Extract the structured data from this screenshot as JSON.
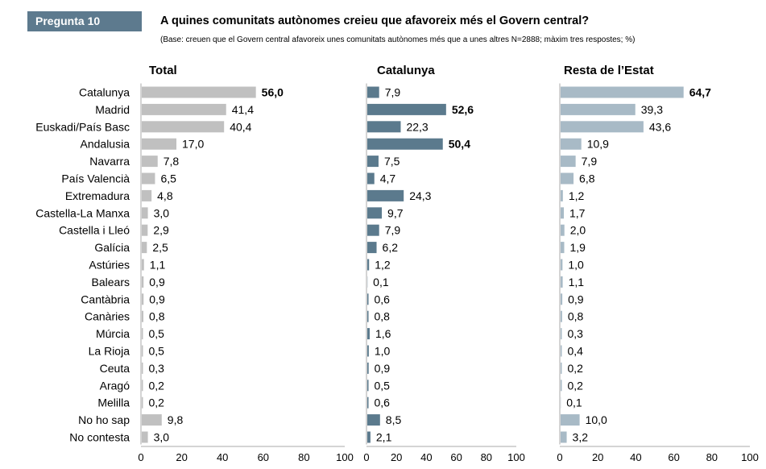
{
  "header": {
    "badge": "Pregunta 10",
    "title": "A quines comunitats autònomes creieu que afavoreix més el Govern central?",
    "subtitle": "(Base: creuen que el Govern central afavoreix unes comunitats autònomes més que a unes altres N=2888; màxim tres respostes; %)"
  },
  "colors": {
    "badge": "#5d7a8e",
    "total": "#c0c0c0",
    "catalunya": "#5b7a8d",
    "resta": "#a8bac6",
    "axis": "#aaaaaa"
  },
  "chart_data": {
    "type": "bar",
    "orientation": "horizontal",
    "categories": [
      "Catalunya",
      "Madrid",
      "Euskadi/País Basc",
      "Andalusia",
      "Navarra",
      "País Valencià",
      "Extremadura",
      "Castella-La Manxa",
      "Castella i Lleó",
      "Galícia",
      "Astúries",
      "Balears",
      "Cantàbria",
      "Canàries",
      "Múrcia",
      "La Rioja",
      "Ceuta",
      "Aragó",
      "Melilla",
      "No ho sap",
      "No contesta"
    ],
    "xlim": [
      0,
      100
    ],
    "xticks": [
      "0",
      "20",
      "40",
      "60",
      "80",
      "100"
    ],
    "series": [
      {
        "name": "Total",
        "color": "#c0c0c0",
        "values": [
          56.0,
          41.4,
          40.4,
          17.0,
          7.8,
          6.5,
          4.8,
          3.0,
          2.9,
          2.5,
          1.1,
          0.9,
          0.9,
          0.8,
          0.5,
          0.5,
          0.3,
          0.2,
          0.2,
          9.8,
          3.0
        ],
        "labels": [
          "56,0",
          "41,4",
          "40,4",
          "17,0",
          "7,8",
          "6,5",
          "4,8",
          "3,0",
          "2,9",
          "2,5",
          "1,1",
          "0,9",
          "0,9",
          "0,8",
          "0,5",
          "0,5",
          "0,3",
          "0,2",
          "0,2",
          "9,8",
          "3,0"
        ],
        "bold": [
          0
        ]
      },
      {
        "name": "Catalunya",
        "color": "#5b7a8d",
        "values": [
          7.9,
          52.6,
          22.3,
          50.4,
          7.5,
          4.7,
          24.3,
          9.7,
          7.9,
          6.2,
          1.2,
          0.1,
          0.6,
          0.8,
          1.6,
          1.0,
          0.9,
          0.5,
          0.6,
          8.5,
          2.1
        ],
        "labels": [
          "7,9",
          "52,6",
          "22,3",
          "50,4",
          "7,5",
          "4,7",
          "24,3",
          "9,7",
          "7,9",
          "6,2",
          "1,2",
          "0,1",
          "0,6",
          "0,8",
          "1,6",
          "1,0",
          "0,9",
          "0,5",
          "0,6",
          "8,5",
          "2,1"
        ],
        "bold": [
          1,
          3
        ]
      },
      {
        "name": "Resta de l’Estat",
        "color": "#a8bac6",
        "values": [
          64.7,
          39.3,
          43.6,
          10.9,
          7.9,
          6.8,
          1.2,
          1.7,
          2.0,
          1.9,
          1.0,
          1.1,
          0.9,
          0.8,
          0.3,
          0.4,
          0.2,
          0.2,
          0.1,
          10.0,
          3.2
        ],
        "labels": [
          "64,7",
          "39,3",
          "43,6",
          "10,9",
          "7,9",
          "6,8",
          "1,2",
          "1,7",
          "2,0",
          "1,9",
          "1,0",
          "1,1",
          "0,9",
          "0,8",
          "0,3",
          "0,4",
          "0,2",
          "0,2",
          "0,1",
          "10,0",
          "3,2"
        ],
        "bold": [
          0
        ]
      }
    ]
  }
}
